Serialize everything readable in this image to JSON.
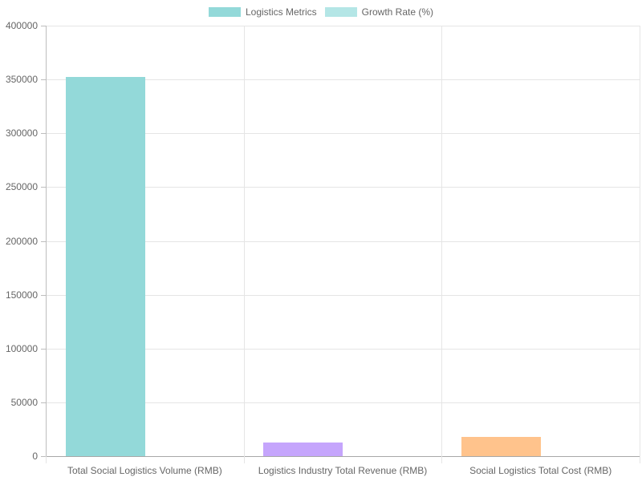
{
  "chart_data": {
    "type": "bar",
    "title": "",
    "xlabel": "",
    "ylabel": "",
    "categories": [
      "Total Social Logistics Volume (RMB)",
      "Logistics Industry Total Revenue (RMB)",
      "Social Logistics Total Cost (RMB)"
    ],
    "series": [
      {
        "name": "Logistics Metrics",
        "values": [
          352300,
          12700,
          17900
        ],
        "colors": [
          "#93d9d9",
          "#c5a5fc",
          "#ffc38c"
        ]
      },
      {
        "name": "Growth Rate (%)",
        "values": [
          0,
          0,
          0
        ],
        "color": "#b4e6e6"
      }
    ],
    "ylim": [
      0,
      400000
    ],
    "yticks": [
      "400000",
      "350000",
      "300000",
      "250000",
      "200000",
      "150000",
      "100000",
      "50000",
      "0"
    ],
    "grid": true,
    "legend_position": "top"
  },
  "legend": {
    "items": [
      {
        "label": "Logistics Metrics",
        "color": "#93d9d9"
      },
      {
        "label": "Growth Rate (%)",
        "color": "#b4e6e6"
      }
    ]
  }
}
